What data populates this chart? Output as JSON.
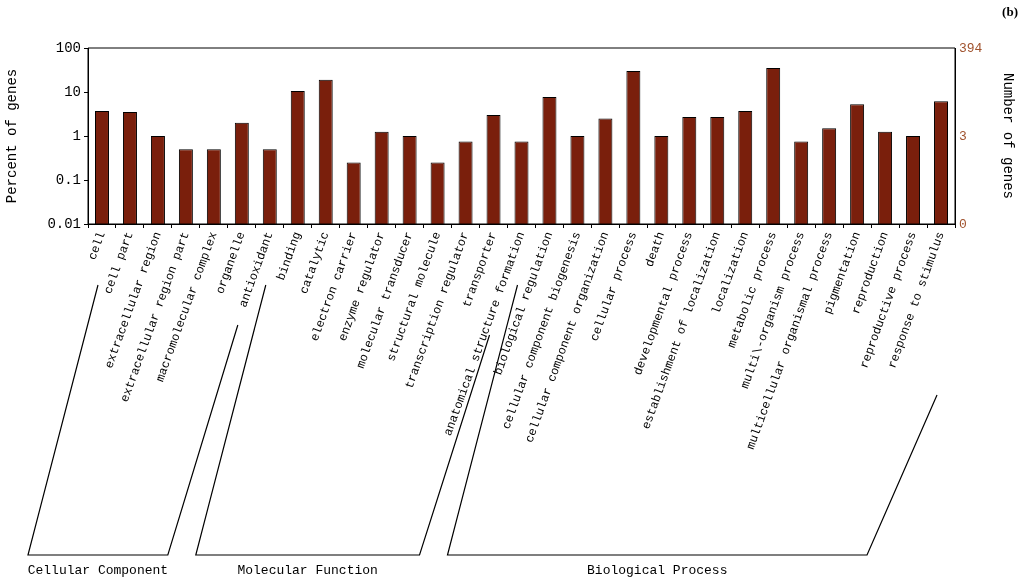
{
  "chart_data": {
    "type": "bar",
    "ylabel": "Percent of genes",
    "y2label": "Number of genes",
    "categories": [
      "cell",
      "cell part",
      "extracellular region",
      "extracellular region part",
      "macromolecular complex",
      "organelle",
      "antioxidant",
      "binding",
      "catalytic",
      "electron carrier",
      "enzyme regulator",
      "molecular transducer",
      "structural molecule",
      "transcription regulator",
      "transporter",
      "anatomical structure formation",
      "biological regulation",
      "cellular component biogenesis",
      "cellular component organization",
      "cellular process",
      "death",
      "developmental process",
      "establishment of localization",
      "localization",
      "metabolic process",
      "multi\\-organism process",
      "multicellular organismal process",
      "pigmentation",
      "reproduction",
      "reproductive process",
      "response to stimulus"
    ],
    "values": [
      3.7,
      3.5,
      1.0,
      0.5,
      0.5,
      2.0,
      0.5,
      10.5,
      19,
      0.25,
      1.25,
      1.0,
      0.25,
      0.75,
      3.0,
      0.75,
      7.7,
      1.0,
      2.5,
      30,
      1.0,
      2.7,
      2.7,
      3.7,
      35,
      0.75,
      1.5,
      5.3,
      1.25,
      1.0,
      6.2
    ],
    "color": "#7a1f0c",
    "log": "y",
    "ylim": [
      0.01,
      100
    ],
    "yticks": [
      0.01,
      0.1,
      1,
      10,
      100
    ],
    "grid": false,
    "legend": false,
    "annotations": [
      "Cellular Component",
      "Molecular Function",
      "Biological Process",
      "(b)",
      "394",
      "3",
      "0"
    ]
  }
}
